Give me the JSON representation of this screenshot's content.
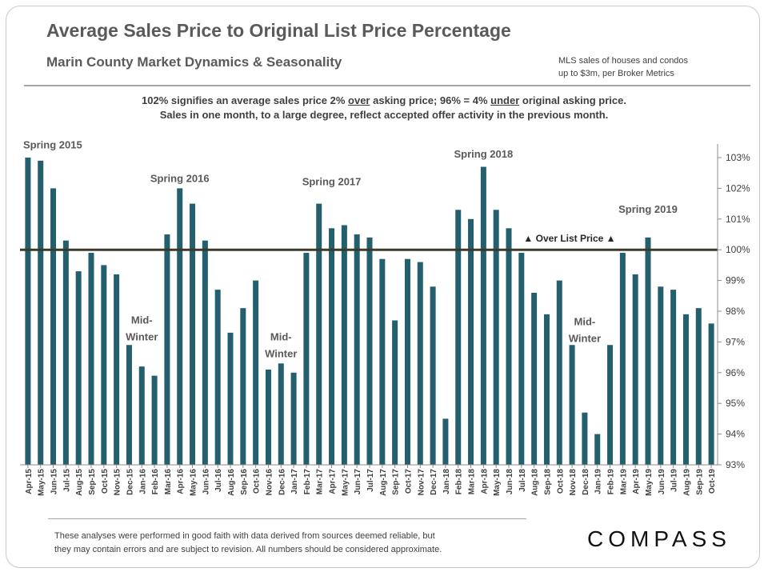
{
  "header": {
    "title": "Average Sales Price to Original List Price Percentage",
    "subtitle": "Marin County Market Dynamics & Seasonality",
    "source_line1": "MLS sales of houses and condos",
    "source_line2": "up to $3m, per Broker Metrics"
  },
  "notes": {
    "line1_a": "102% signifies an average sales price 2% ",
    "line1_b": "over",
    "line1_c": " asking price; 96% = 4% ",
    "line1_d": "under",
    "line1_e": " original asking price.",
    "line2": "Sales in one month, to a large degree, reflect accepted offer activity in the previous month."
  },
  "footer": {
    "disclaimer_line1": "These analyses were performed in good faith with data derived from sources deemed reliable, but",
    "disclaimer_line2": "they may contain errors and are subject to revision.  All numbers should be considered  approximate.",
    "logo": "COMPASS"
  },
  "colors": {
    "bar": "#235F6D",
    "reference_line": "#3D3A2A",
    "text": "#595959"
  },
  "chart_data": {
    "type": "bar",
    "title": "Average Sales Price to Original List Price Percentage",
    "xlabel": "",
    "ylabel": "",
    "ylim": [
      93,
      103
    ],
    "yticks": [
      93,
      94,
      95,
      96,
      97,
      98,
      99,
      100,
      101,
      102,
      103
    ],
    "ytick_labels": [
      "93%",
      "94%",
      "95%",
      "96%",
      "97%",
      "98%",
      "99%",
      "100%",
      "101%",
      "102%",
      "103%"
    ],
    "y_axis_side": "right",
    "grid": false,
    "categories": [
      "Apr-15",
      "May-15",
      "Jun-15",
      "Jul-15",
      "Aug-15",
      "Sep-15",
      "Oct-15",
      "Nov-15",
      "Dec-15",
      "Jan-16",
      "Feb-16",
      "Mar-16",
      "Apr-16",
      "May-16",
      "Jun-16",
      "Jul-16",
      "Aug-16",
      "Sep-16",
      "Oct-16",
      "Nov-16",
      "Dec-16",
      "Jan-17",
      "Feb-17",
      "Mar-17",
      "Apr-17",
      "May-17",
      "Jun-17",
      "Jul-17",
      "Aug-17",
      "Sep-17",
      "Oct-17",
      "Nov-17",
      "Dec-17",
      "Jan-18",
      "Feb-18",
      "Mar-18",
      "Apr-18",
      "May-18",
      "Jun-18",
      "Jul-18",
      "Aug-18",
      "Sep-18",
      "Oct-18",
      "Nov-18",
      "Dec-18",
      "Jan-19",
      "Feb-19",
      "Mar-19",
      "Apr-19",
      "May-19",
      "Jun-19",
      "Jul-19",
      "Aug-19",
      "Sep-19",
      "Oct-19"
    ],
    "values": [
      103.0,
      102.9,
      102.0,
      100.3,
      99.3,
      99.9,
      99.5,
      99.2,
      96.9,
      96.2,
      95.9,
      100.5,
      102.0,
      101.5,
      100.3,
      98.7,
      97.3,
      98.1,
      99.0,
      96.1,
      96.3,
      96.0,
      99.9,
      101.5,
      100.7,
      100.8,
      100.5,
      100.4,
      99.7,
      97.7,
      99.7,
      99.6,
      98.8,
      94.5,
      101.3,
      101.0,
      102.7,
      101.3,
      100.7,
      99.9,
      98.6,
      97.9,
      99.0,
      96.9,
      94.7,
      94.0,
      96.9,
      99.9,
      99.2,
      100.4,
      98.8,
      98.7,
      97.9,
      98.1,
      97.6
    ],
    "reference_line": {
      "value": 100,
      "label": "▲ Over List Price ▲"
    },
    "annotations": [
      {
        "text": "Spring 2015",
        "category": "Apr-15",
        "value": 103.3
      },
      {
        "text": "Spring 2016",
        "category": "Apr-16",
        "value": 102.2
      },
      {
        "text": "Spring 2017",
        "category": "Apr-17",
        "value": 102.1
      },
      {
        "text": "Spring 2018",
        "category": "Apr-18",
        "value": 103.0
      },
      {
        "text": "Spring 2019",
        "category": "May-19",
        "value": 101.2
      },
      {
        "text": "Mid-",
        "text2": "Winter",
        "category": "Jan-16",
        "value": 97.6
      },
      {
        "text": "Mid-",
        "text2": "Winter",
        "category": "Dec-16",
        "value": 97.05
      },
      {
        "text": "Mid-",
        "text2": "Winter",
        "category": "Dec-18",
        "value": 97.55
      }
    ]
  }
}
